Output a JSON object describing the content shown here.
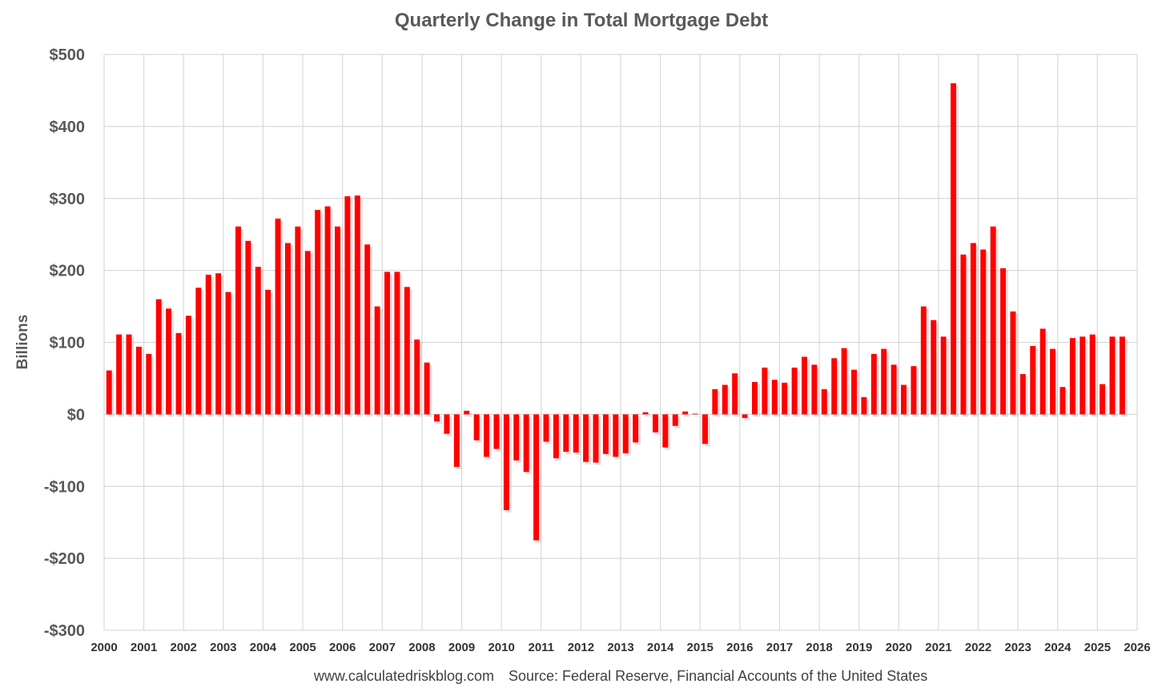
{
  "chart_data": {
    "type": "bar",
    "title": "Quarterly Change in Total Mortgage Debt",
    "ylabel": "Billions",
    "xlabel": "",
    "source_site": "www.calculatedriskblog.com",
    "source_note": "Source: Federal Reserve, Financial Accounts of the United States",
    "ylim": [
      -300,
      500
    ],
    "xlim": [
      2000,
      2026
    ],
    "yticks": [
      500,
      400,
      300,
      200,
      100,
      0,
      -100,
      -200,
      -300
    ],
    "ytick_labels": [
      "$500",
      "$400",
      "$300",
      "$200",
      "$100",
      "$0",
      "-$100",
      "-$200",
      "-$300"
    ],
    "xticks": [
      "2000",
      "2001",
      "2002",
      "2003",
      "2004",
      "2005",
      "2006",
      "2007",
      "2008",
      "2009",
      "2010",
      "2011",
      "2012",
      "2013",
      "2014",
      "2015",
      "2016",
      "2017",
      "2018",
      "2019",
      "2020",
      "2021",
      "2022",
      "2023",
      "2024",
      "2025",
      "2026"
    ],
    "grid": true,
    "bar_color": "#ff0000",
    "series": [
      {
        "start_year": 2000,
        "periods_per_year": 4,
        "values": [
          61,
          111,
          111,
          94,
          84,
          160,
          147,
          113,
          137,
          176,
          194,
          196,
          170,
          261,
          241,
          205,
          173,
          272,
          238,
          261,
          227,
          284,
          289,
          261,
          303,
          304,
          236,
          150,
          198,
          198,
          177,
          104,
          72,
          -10,
          -27,
          -73,
          5,
          -36,
          -59,
          -48,
          -133,
          -64,
          -80,
          -175,
          -38,
          -61,
          -52,
          -53,
          -66,
          -67,
          -55,
          -59,
          -54,
          -39,
          3,
          -25,
          -46,
          -16,
          4,
          1,
          -41,
          35,
          41,
          57,
          -5,
          45,
          65,
          48,
          44,
          65,
          80,
          69,
          35,
          78,
          92,
          62,
          24,
          84,
          91,
          69,
          41,
          67,
          150,
          131,
          108,
          460,
          222,
          238,
          229,
          261,
          203,
          143,
          56,
          95,
          119,
          91,
          38,
          106,
          108,
          111,
          42,
          108,
          108
        ]
      }
    ]
  }
}
